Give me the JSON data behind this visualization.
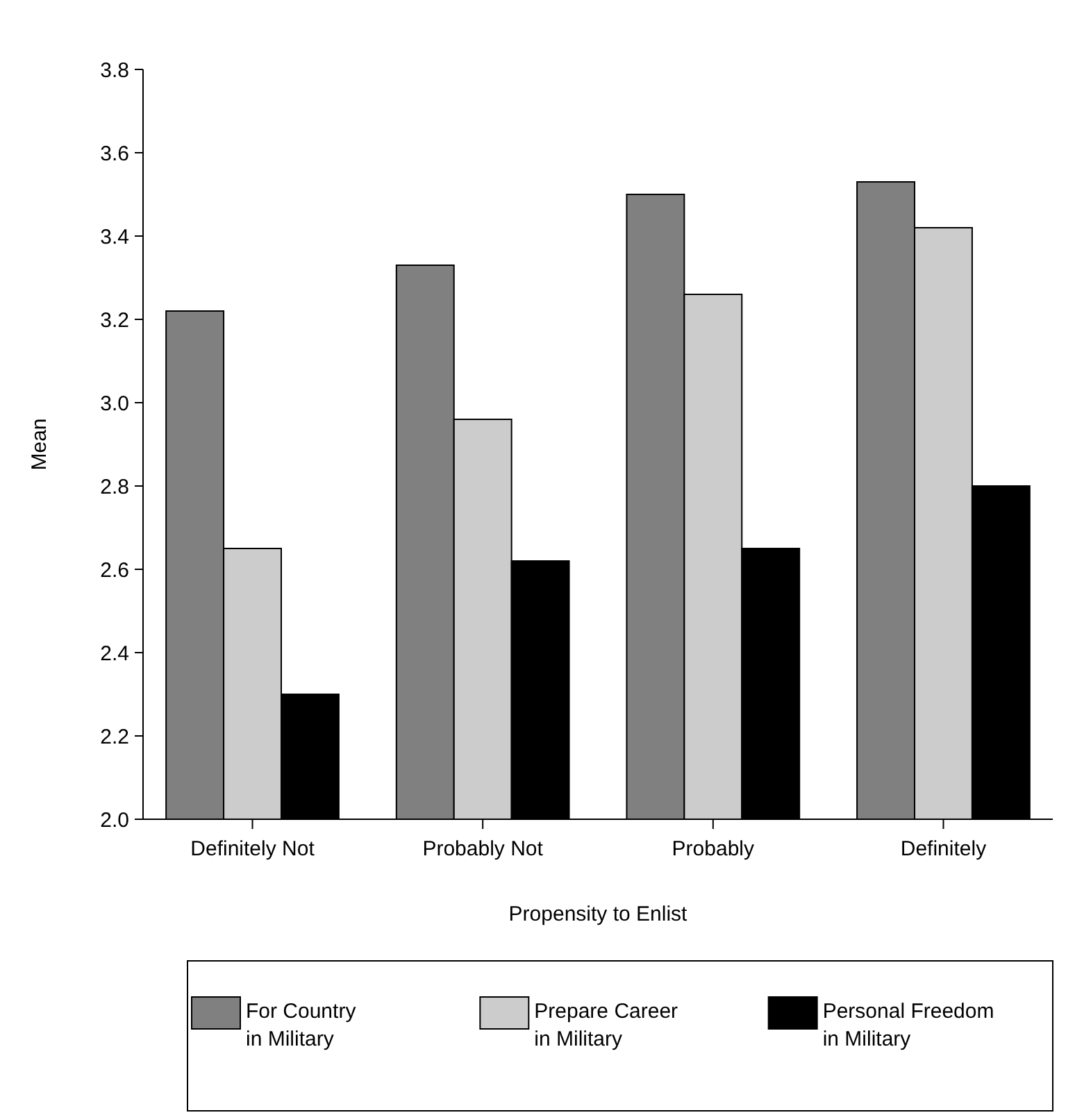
{
  "chart_data": {
    "type": "bar",
    "xlabel": "Propensity to Enlist",
    "ylabel": "Mean",
    "categories": [
      "Definitely Not",
      "Probably Not",
      "Probably",
      "Definitely"
    ],
    "series": [
      {
        "name": "For Country\nin Military",
        "color": "#808080",
        "values": [
          3.22,
          3.33,
          3.5,
          3.53
        ]
      },
      {
        "name": "Prepare Career\nin Military",
        "color": "#cccccc",
        "values": [
          2.65,
          2.96,
          3.26,
          3.42
        ]
      },
      {
        "name": "Personal Freedom\nin Military",
        "color": "#000000",
        "values": [
          2.3,
          2.62,
          2.65,
          2.8
        ]
      }
    ],
    "ylim": [
      2.0,
      3.8
    ],
    "yticks": [
      {
        "value": 2.0,
        "label": "2.0"
      },
      2.2,
      2.4,
      2.6,
      2.8,
      {
        "value": 3.0,
        "label": "3.0"
      },
      3.2,
      3.4,
      3.6,
      3.8
    ],
    "grid": false,
    "legend": "bottom"
  }
}
